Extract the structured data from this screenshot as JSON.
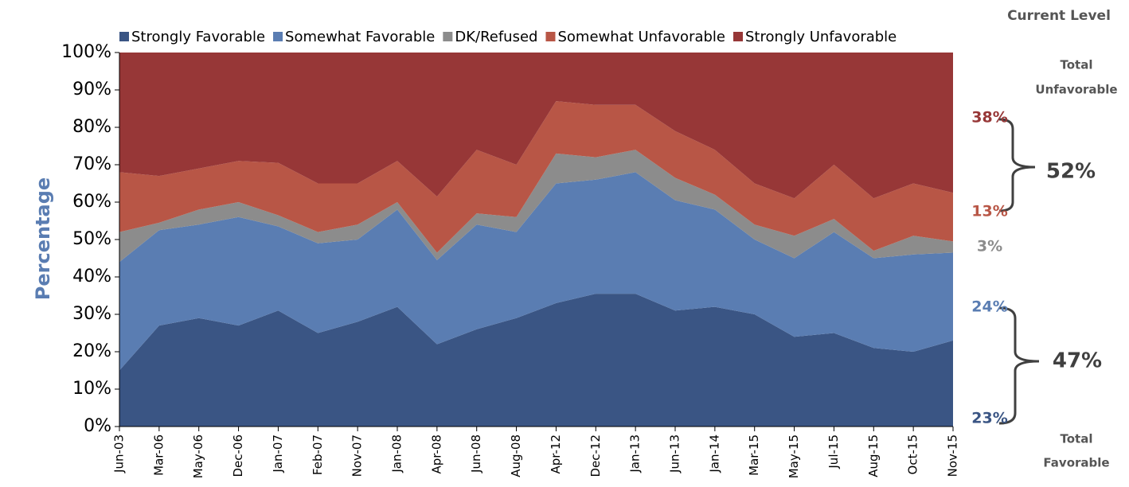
{
  "chart_data": {
    "type": "stacked_area",
    "y_axis_label": "Percentage",
    "categories": [
      "Jun-03",
      "Mar-06",
      "May-06",
      "Dec-06",
      "Jan-07",
      "Feb-07",
      "Nov-07",
      "Jan-08",
      "Apr-08",
      "Jun-08",
      "Aug-08",
      "Apr-12",
      "Dec-12",
      "Jan-13",
      "Jun-13",
      "Jan-14",
      "Mar-15",
      "May-15",
      "Jul-15",
      "Aug-15",
      "Oct-15",
      "Nov-15"
    ],
    "series": [
      {
        "name": "Strongly Favorable",
        "color": "#3a5584",
        "values": [
          15,
          27,
          29,
          27,
          31,
          25,
          28,
          32,
          22,
          26,
          29,
          33,
          35.5,
          35.5,
          31,
          32,
          30,
          24,
          25,
          21,
          20,
          23
        ]
      },
      {
        "name": "Somewhat Favorable",
        "color": "#5a7db2",
        "values": [
          29,
          25.5,
          25,
          29,
          22.5,
          24,
          22,
          26,
          22.5,
          28,
          23,
          32,
          30.5,
          32.5,
          29.5,
          26,
          20,
          21,
          27,
          24,
          26,
          23.5
        ]
      },
      {
        "name": "DK/Refused",
        "color": "#8c8c8c",
        "values": [
          8,
          2,
          4,
          4,
          3,
          3,
          4,
          2,
          2,
          3,
          4,
          8,
          6,
          6,
          6,
          4,
          4,
          6,
          3.5,
          2,
          5,
          3
        ]
      },
      {
        "name": "Somewhat Unfavorable",
        "color": "#b85646",
        "values": [
          16,
          12.5,
          11,
          11,
          14,
          13,
          11,
          11,
          15,
          17,
          14,
          14,
          14,
          12,
          12.5,
          12,
          11,
          10,
          14.5,
          14,
          14,
          13
        ]
      },
      {
        "name": "Strongly Unfavorable",
        "color": "#973737",
        "values": [
          32,
          33,
          31,
          29,
          29.5,
          35,
          35,
          29,
          38.5,
          26,
          30,
          13,
          14,
          14,
          21,
          26,
          35,
          39,
          30,
          39,
          35,
          37.5
        ]
      }
    ],
    "ylim": [
      0,
      100
    ],
    "yticks": [
      {
        "value": 0,
        "label": "0%"
      },
      {
        "value": 10,
        "label": "10%"
      },
      {
        "value": 20,
        "label": "20%"
      },
      {
        "value": 30,
        "label": "30%"
      },
      {
        "value": 40,
        "label": "40%"
      },
      {
        "value": 50,
        "label": "50%"
      },
      {
        "value": 60,
        "label": "60%"
      },
      {
        "value": 70,
        "label": "70%"
      },
      {
        "value": 80,
        "label": "80%"
      },
      {
        "value": 90,
        "label": "90%"
      },
      {
        "value": 100,
        "label": "100%"
      }
    ],
    "legend": "top",
    "annotations": [
      {
        "text": "Current Level",
        "color": "#555555"
      },
      {
        "text": "Total",
        "color": "#555555"
      },
      {
        "text": "Unfavorable",
        "color": "#555555"
      },
      {
        "text": "38%",
        "color": "#973737"
      },
      {
        "text": "13%",
        "color": "#b85646"
      },
      {
        "text": "52%",
        "color": "#404040"
      },
      {
        "text": "3%",
        "color": "#8c8c8c"
      },
      {
        "text": "24%",
        "color": "#5a7db2"
      },
      {
        "text": "23%",
        "color": "#3a5584"
      },
      {
        "text": "47%",
        "color": "#404040"
      },
      {
        "text": "Total",
        "color": "#555555"
      },
      {
        "text": "Favorable",
        "color": "#555555"
      }
    ]
  }
}
